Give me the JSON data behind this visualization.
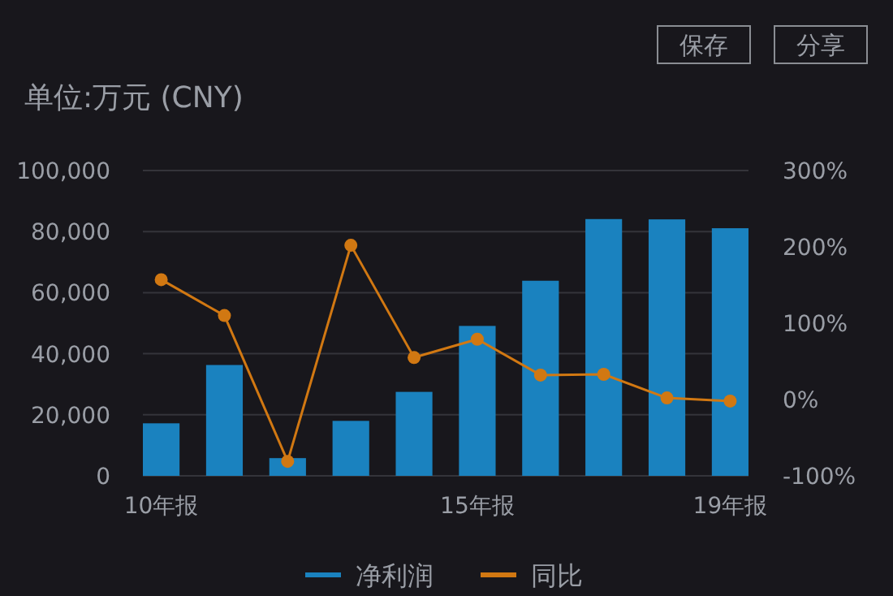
{
  "chart_data": {
    "type": "bar",
    "title": "单位:万元 (CNY)",
    "annotations": [
      "保存",
      "分享"
    ],
    "categories": [
      "10年报",
      null,
      null,
      null,
      null,
      "15年报",
      null,
      null,
      null,
      "19年报"
    ],
    "series": [
      {
        "name": "净利润",
        "color": "#1a82bf",
        "values": [
          17200,
          36300,
          5800,
          18000,
          27500,
          49100,
          63900,
          84100,
          84000,
          81100
        ]
      },
      {
        "name": "同比",
        "type": "line",
        "axis": "y2",
        "color": "#d17812",
        "values": [
          157,
          110,
          -81,
          202,
          55,
          79,
          32,
          33,
          2,
          -2
        ]
      }
    ],
    "ylim": [
      0,
      100000
    ],
    "yticks": [
      0,
      {
        "value": 20000,
        "label": "20,000"
      },
      {
        "value": 40000,
        "label": "40,000"
      },
      {
        "value": 60000,
        "label": "60,000"
      },
      {
        "value": 80000,
        "label": "80,000"
      },
      {
        "value": 100000,
        "label": "100,000"
      }
    ],
    "y2lim": [
      -100,
      300
    ],
    "y2ticks": [
      {
        "value": -100,
        "label": "-100%"
      },
      {
        "value": 0,
        "label": "0%"
      },
      {
        "value": 100,
        "label": "100%"
      },
      {
        "value": 200,
        "label": "200%"
      },
      {
        "value": 300,
        "label": "300%"
      }
    ],
    "grid": "y",
    "legend": "bottom",
    "marker": "circle"
  }
}
